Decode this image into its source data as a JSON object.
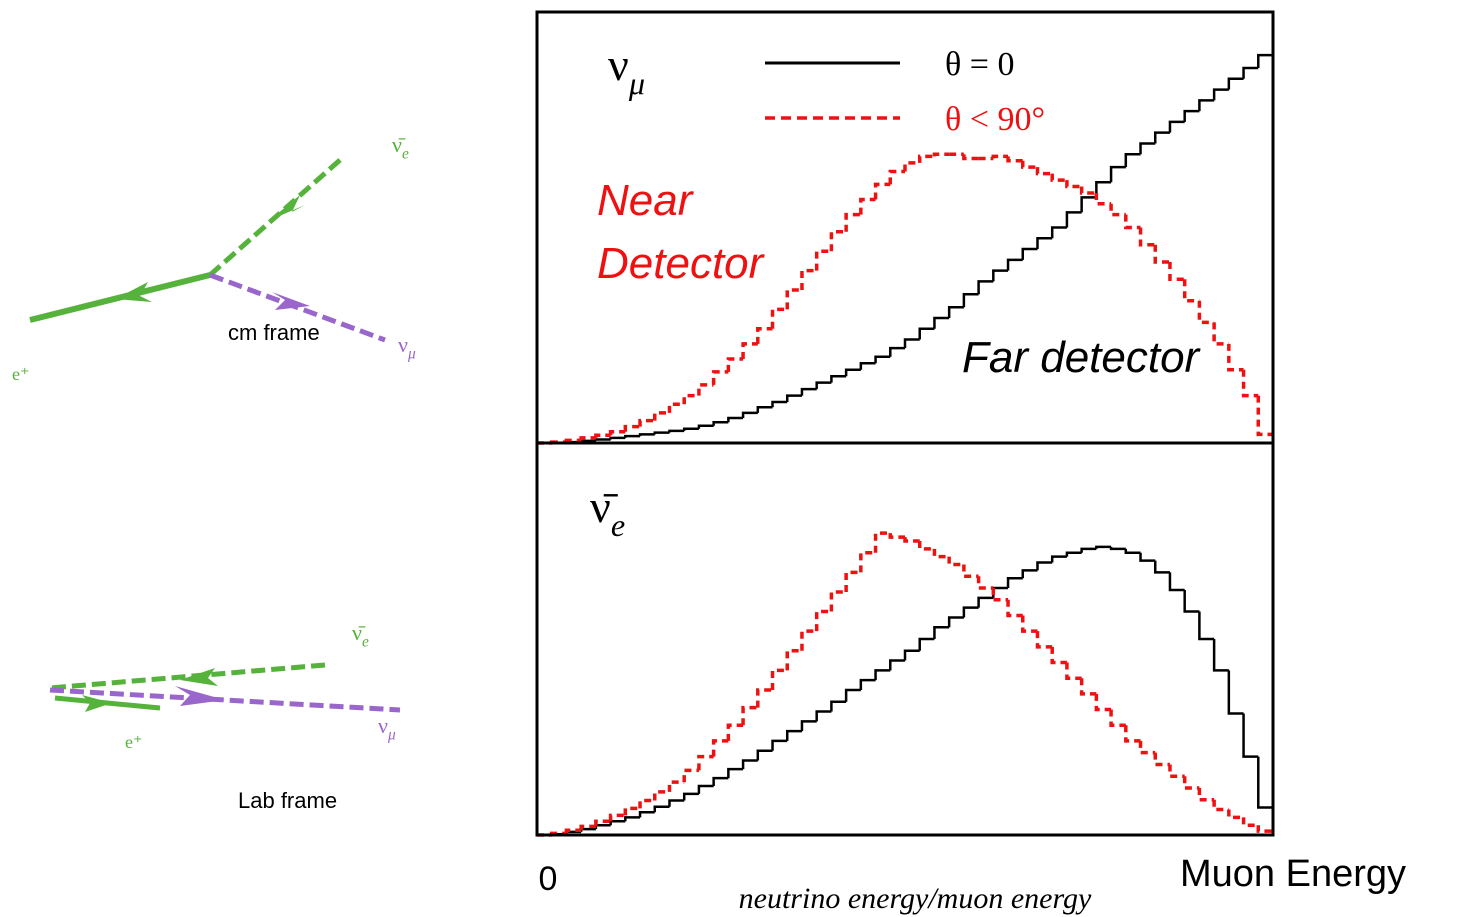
{
  "chart_data": [
    {
      "type": "histogram",
      "symbol": {
        "base": "ν",
        "sub": "μ"
      },
      "legend": true,
      "annotations": [
        {
          "lines": [
            "Near",
            "Detector"
          ],
          "color": "#ee1111"
        },
        {
          "lines": [
            "Far detector"
          ],
          "color": "#000000"
        }
      ],
      "xlim": [
        0,
        1
      ],
      "ylim": [
        0,
        1
      ],
      "bins": [
        0,
        0.02,
        0.04,
        0.06,
        0.08,
        0.1,
        0.12,
        0.14,
        0.16,
        0.18,
        0.2,
        0.22,
        0.24,
        0.26,
        0.28,
        0.3,
        0.32,
        0.34,
        0.36,
        0.38,
        0.4,
        0.42,
        0.44,
        0.46,
        0.48,
        0.5,
        0.52,
        0.54,
        0.56,
        0.58,
        0.6,
        0.62,
        0.64,
        0.66,
        0.68,
        0.7,
        0.72,
        0.74,
        0.76,
        0.78,
        0.8,
        0.82,
        0.84,
        0.86,
        0.88,
        0.9,
        0.92,
        0.94,
        0.96,
        0.98,
        1
      ],
      "series": [
        {
          "name": "θ = 0",
          "color": "#000000",
          "dashed": false,
          "values": [
            0,
            0,
            0.002,
            0.005,
            0.008,
            0.012,
            0.016,
            0.02,
            0.024,
            0.028,
            0.033,
            0.04,
            0.048,
            0.058,
            0.07,
            0.083,
            0.095,
            0.11,
            0.125,
            0.14,
            0.155,
            0.17,
            0.185,
            0.2,
            0.22,
            0.24,
            0.265,
            0.29,
            0.315,
            0.345,
            0.375,
            0.4,
            0.425,
            0.45,
            0.475,
            0.5,
            0.535,
            0.57,
            0.605,
            0.64,
            0.67,
            0.695,
            0.72,
            0.745,
            0.77,
            0.795,
            0.82,
            0.845,
            0.87,
            0.9
          ]
        },
        {
          "name": "θ < 90°",
          "color": "#ee1111",
          "dashed": true,
          "values": [
            0,
            0.002,
            0.006,
            0.012,
            0.018,
            0.026,
            0.038,
            0.052,
            0.07,
            0.09,
            0.11,
            0.135,
            0.165,
            0.195,
            0.23,
            0.265,
            0.31,
            0.355,
            0.4,
            0.445,
            0.49,
            0.53,
            0.565,
            0.6,
            0.63,
            0.65,
            0.665,
            0.67,
            0.67,
            0.66,
            0.66,
            0.665,
            0.655,
            0.64,
            0.625,
            0.61,
            0.595,
            0.58,
            0.555,
            0.53,
            0.5,
            0.46,
            0.42,
            0.38,
            0.33,
            0.28,
            0.23,
            0.17,
            0.11,
            0.02
          ]
        }
      ]
    },
    {
      "type": "histogram",
      "symbol": {
        "base": "ν̄",
        "sub": "e"
      },
      "legend": false,
      "annotations": [],
      "xlabel": "neutrino energy/muon energy",
      "xlim": [
        0,
        1
      ],
      "ylim": [
        0,
        1
      ],
      "xticks": [
        {
          "value": 0,
          "label": "0"
        },
        {
          "value": 1,
          "label": "Muon Energy"
        }
      ],
      "bins": [
        0,
        0.02,
        0.04,
        0.06,
        0.08,
        0.1,
        0.12,
        0.14,
        0.16,
        0.18,
        0.2,
        0.22,
        0.24,
        0.26,
        0.28,
        0.3,
        0.32,
        0.34,
        0.36,
        0.38,
        0.4,
        0.42,
        0.44,
        0.46,
        0.48,
        0.5,
        0.52,
        0.54,
        0.56,
        0.58,
        0.6,
        0.62,
        0.64,
        0.66,
        0.68,
        0.7,
        0.72,
        0.74,
        0.76,
        0.78,
        0.8,
        0.82,
        0.84,
        0.86,
        0.88,
        0.9,
        0.92,
        0.94,
        0.96,
        0.98,
        1
      ],
      "series": [
        {
          "name": "θ = 0",
          "color": "#000000",
          "dashed": false,
          "values": [
            0,
            0.002,
            0.008,
            0.015,
            0.025,
            0.035,
            0.045,
            0.058,
            0.072,
            0.088,
            0.105,
            0.125,
            0.145,
            0.168,
            0.19,
            0.215,
            0.24,
            0.265,
            0.29,
            0.315,
            0.34,
            0.37,
            0.395,
            0.42,
            0.445,
            0.47,
            0.5,
            0.53,
            0.555,
            0.58,
            0.605,
            0.63,
            0.655,
            0.675,
            0.695,
            0.71,
            0.72,
            0.73,
            0.735,
            0.73,
            0.72,
            0.7,
            0.67,
            0.625,
            0.57,
            0.5,
            0.42,
            0.31,
            0.2,
            0.07
          ]
        },
        {
          "name": "θ < 90°",
          "color": "#ee1111",
          "dashed": true,
          "values": [
            0,
            0.004,
            0.012,
            0.022,
            0.035,
            0.05,
            0.068,
            0.088,
            0.11,
            0.135,
            0.165,
            0.2,
            0.24,
            0.28,
            0.325,
            0.37,
            0.42,
            0.47,
            0.52,
            0.57,
            0.62,
            0.67,
            0.72,
            0.77,
            0.76,
            0.75,
            0.73,
            0.71,
            0.69,
            0.66,
            0.63,
            0.6,
            0.56,
            0.52,
            0.48,
            0.44,
            0.4,
            0.36,
            0.32,
            0.28,
            0.24,
            0.21,
            0.18,
            0.15,
            0.12,
            0.09,
            0.065,
            0.045,
            0.025,
            0.01
          ]
        }
      ]
    }
  ],
  "diagram": {
    "cm": {
      "nubar": {
        "base": "ν̄",
        "sub": "e"
      },
      "numu": {
        "base": "ν",
        "sub": "μ"
      },
      "positron": "e⁺",
      "caption": "cm frame"
    },
    "lab": {
      "nubar": {
        "base": "ν̄",
        "sub": "e"
      },
      "numu": {
        "base": "ν",
        "sub": "μ"
      },
      "positron": "e⁺",
      "caption": "Lab frame"
    }
  }
}
